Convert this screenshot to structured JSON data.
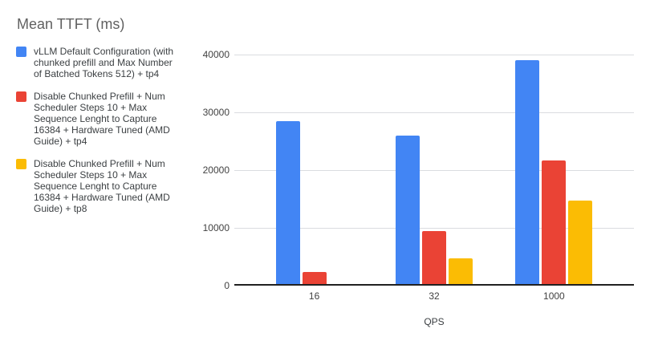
{
  "title": "Mean TTFT (ms)",
  "legend": {
    "items": [
      {
        "label": "vLLM Default Configuration (with chunked prefill and Max Number of Batched Tokens 512) + tp4",
        "color": "#4285F4"
      },
      {
        "label": "Disable Chunked Prefill + Num Scheduler Steps 10 + Max Sequence Lenght to Capture 16384 + Hardware Tuned (AMD Guide) + tp4",
        "color": "#EA4335"
      },
      {
        "label": "Disable Chunked Prefill + Num Scheduler Steps 10 + Max Sequence Lenght to Capture 16384 + Hardware Tuned (AMD Guide) + tp8",
        "color": "#FBBC04"
      }
    ]
  },
  "chart_data": {
    "type": "bar",
    "title": "Mean TTFT (ms)",
    "categories": [
      "16",
      "32",
      "1000"
    ],
    "series": [
      {
        "name": "vLLM Default Configuration (with chunked prefill and Max Number of Batched Tokens 512) + tp4",
        "color": "#4285F4",
        "values": [
          28500,
          26000,
          39000
        ]
      },
      {
        "name": "Disable Chunked Prefill + Num Scheduler Steps 10 + Max Sequence Lenght to Capture 16384 + Hardware Tuned (AMD Guide) + tp4",
        "color": "#EA4335",
        "values": [
          2300,
          9400,
          21600
        ]
      },
      {
        "name": "Disable Chunked Prefill + Num Scheduler Steps 10 + Max Sequence Lenght to Capture 16384 + Hardware Tuned (AMD Guide) + tp8",
        "color": "#FBBC04",
        "values": [
          200,
          4700,
          14700
        ]
      }
    ],
    "xlabel": "QPS",
    "ylabel": "",
    "ylim": [
      0,
      40000
    ],
    "yticks": [
      0,
      10000,
      20000,
      30000,
      40000
    ],
    "grid": true,
    "legend_position": "left"
  }
}
